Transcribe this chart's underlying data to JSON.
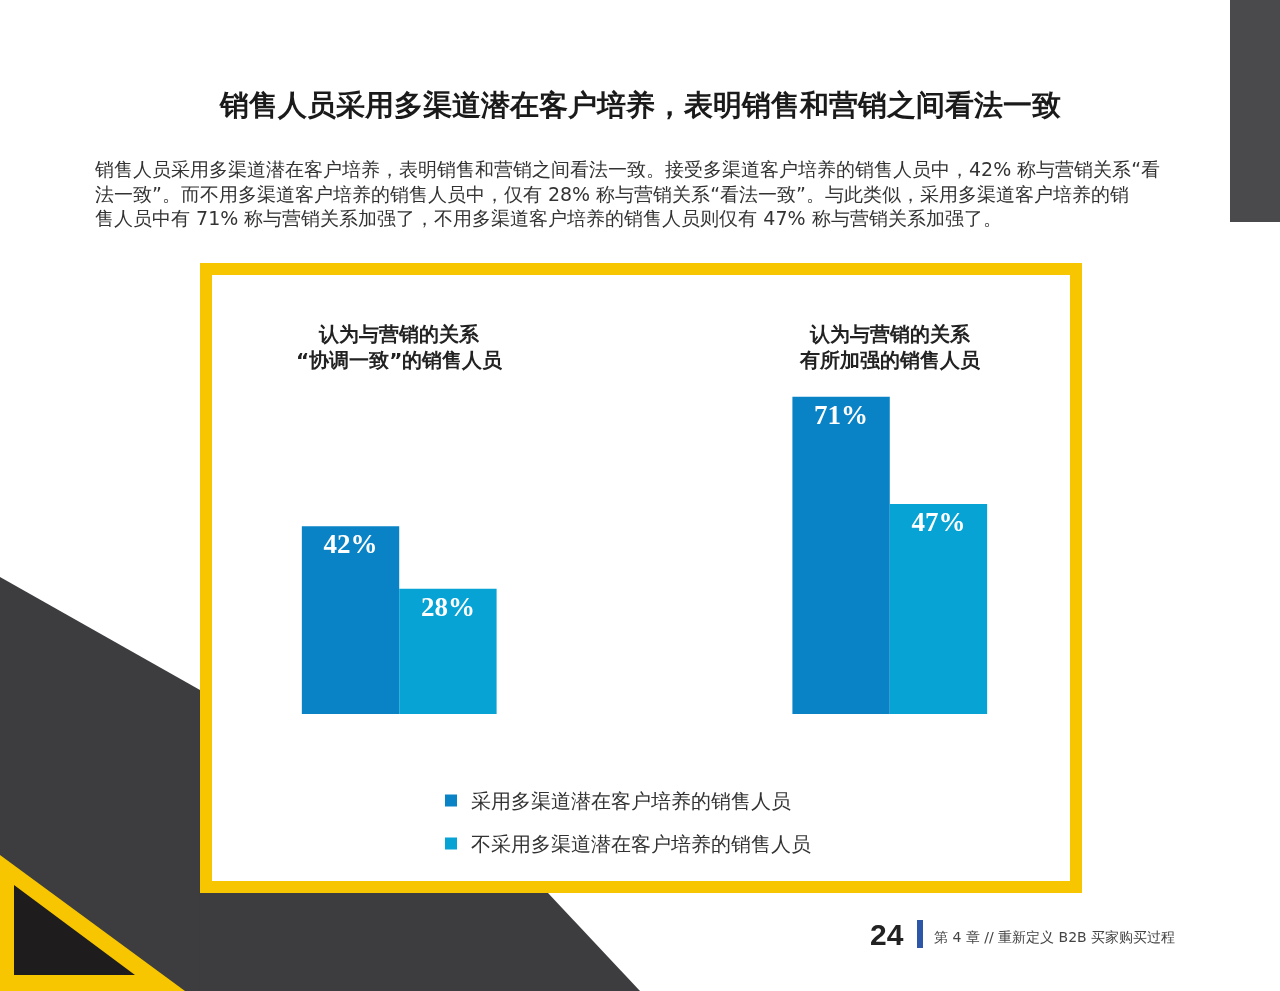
{
  "chart_data": {
    "type": "bar",
    "title": "销售人员采用多渠道潜在客户培养，表明销售和营销之间看法一致",
    "subtitle": "销售人员采用多渠道潜在客户培养，表明销售和营销之间看法一致。接受多渠道客户培养的销售人员中，42% 称与营销关系“看法一致”。而不用多渠道客户培养的销售人员中，仅有 28% 称与营销关系“看法一致”。与此类似，采用多渠道客户培养的销售人员中有 71% 称与营销关系加强了，不用多渠道客户培养的销售人员则仅有 47% 称与营销关系加强了。",
    "categories": [
      "认为与营销的关系“协调一致”的销售人员",
      "认为与营销的关系有所加强的销售人员"
    ],
    "series": [
      {
        "name": "采用多渠道潜在客户培养的销售人员",
        "color": "#0a83c6",
        "values": [
          42,
          71
        ],
        "value_labels": [
          "42%",
          "71%"
        ]
      },
      {
        "name": "不采用多渠道潜在客户培养的销售人员",
        "color": "#06a3d4",
        "values": [
          28,
          47
        ],
        "value_labels": [
          "28%",
          "47%"
        ]
      }
    ],
    "legend": "bottom",
    "annotations": [
      "24",
      "第 4 章 // 重新定义 B2B 买家购买过程"
    ]
  }
}
